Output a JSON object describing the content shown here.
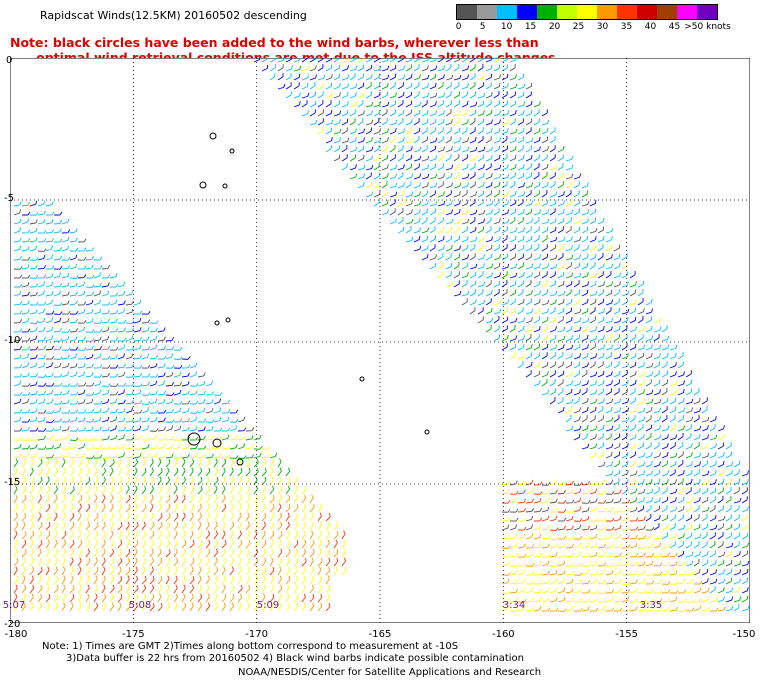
{
  "header": {
    "title": "Rapidscat Winds(12.5KM) 20160502 descending",
    "note_line1": "Note: black circles have been added to the wind barbs, wherever less than",
    "note_line2": "      optimal wind retrieval conditions are met due to the ISS altitude changes."
  },
  "scale": {
    "colors": [
      "#555555",
      "#999999",
      "#00bfff",
      "#0000ff",
      "#00b000",
      "#bfff00",
      "#ffff00",
      "#ff9900",
      "#ff3300",
      "#d00000",
      "#a04000",
      "#ff00ff",
      "#7000c0"
    ],
    "labels": [
      "0",
      "5",
      "10",
      "15",
      "20",
      "25",
      "30",
      "35",
      "40",
      "45",
      ">50 knots"
    ]
  },
  "map": {
    "lat_labels": [
      "0",
      "-5",
      "-10",
      "-15",
      "-20"
    ],
    "lon_labels": [
      "-180",
      "-175",
      "-170",
      "-165",
      "-160",
      "-155",
      "-150"
    ],
    "pass_times": [
      "5:07",
      "5:08",
      "5:09",
      "3:34",
      "3:35"
    ]
  },
  "footer": {
    "line1": "Note: 1) Times are GMT 2)Times along bottom correspond to measurement at -10S",
    "line2": "3)Data buffer is 22 hrs from 20160502 4) Black wind barbs indicate possible contamination",
    "line3": "NOAA/NESDIS/Center for Satellite Applications and Research"
  }
}
